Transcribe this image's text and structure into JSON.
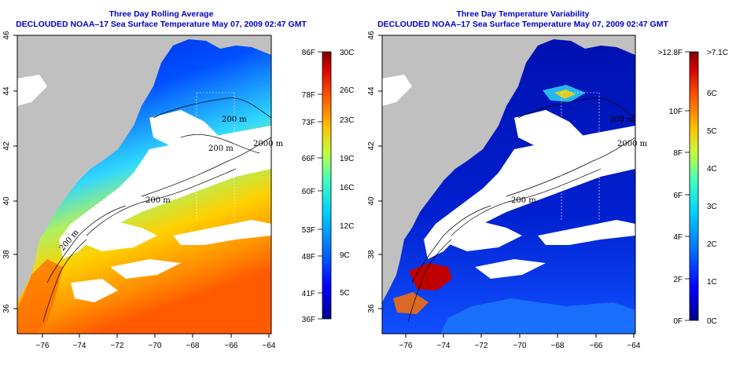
{
  "left_panel": {
    "title_line1": "Three Day Rolling Average",
    "title_line2": "DECLOUDED NOAA–17 Sea Surface Temperature May 07, 2009 02:47 GMT",
    "colorbar_f": [
      "86F",
      "78F",
      "73F",
      "66F",
      "60F",
      "53F",
      "48F",
      "41F",
      "36F"
    ],
    "colorbar_c": [
      "30C",
      "26C",
      "23C",
      "19C",
      "16C",
      "12C",
      "9C",
      "5C"
    ],
    "contour_labels": [
      "200 m",
      "2000 m",
      "200 m",
      "200 m",
      "200 m"
    ]
  },
  "right_panel": {
    "title_line1": "Three Day Temperature Variability",
    "title_line2": "DECLOUDED NOAA–17 Sea Surface Temperature May 07, 2009 02:47 GMT",
    "colorbar_f": [
      ">12.8F",
      "10F",
      "8F",
      "6F",
      "4F",
      "2F",
      "0F"
    ],
    "colorbar_c": [
      ">7.1C",
      "6C",
      "5C",
      "4C",
      "3C",
      "2C",
      "1C",
      "0C"
    ],
    "contour_labels": [
      "200 m",
      "2000 m",
      "200 m"
    ]
  },
  "axes": {
    "lat_ticks": [
      "46",
      "44",
      "42",
      "40",
      "38",
      "36"
    ],
    "lon_ticks": [
      "−76",
      "−74",
      "−72",
      "−70",
      "−68",
      "−66",
      "−64"
    ]
  },
  "colors": {
    "land": "#c0c0c0",
    "cloud": "#ffffff",
    "title": "#0000c8",
    "sst_scale": [
      "#00008f",
      "#0000ff",
      "#0060ff",
      "#00bfff",
      "#40ffbf",
      "#bfff40",
      "#ffbf00",
      "#ff6000",
      "#cf0000",
      "#800000"
    ],
    "var_scale": [
      "#00008f",
      "#0000ff",
      "#0060ff",
      "#00bfff",
      "#40ffbf",
      "#bfff40",
      "#ffbf00",
      "#ff6000",
      "#cf0000",
      "#800000"
    ]
  }
}
